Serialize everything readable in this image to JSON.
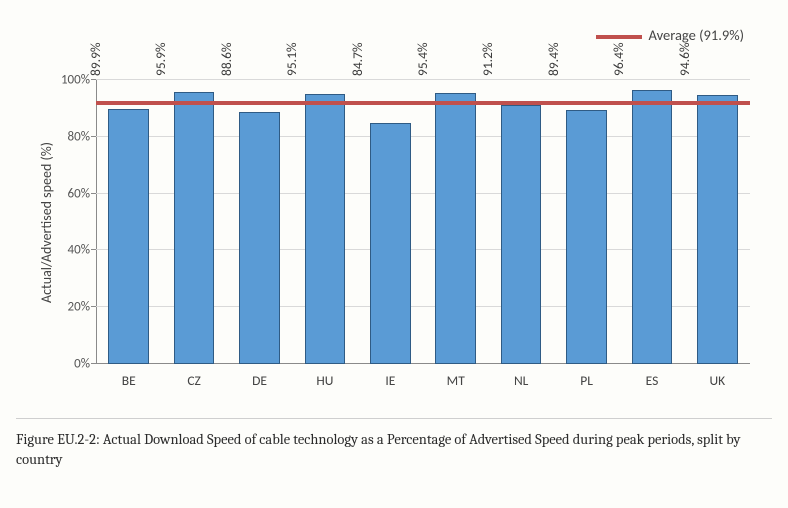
{
  "chart": {
    "type": "bar",
    "legend_label": "Average (91.9%)",
    "average_value": 91.9,
    "y_axis_title": "Actual/Advertised speed (%)",
    "ylim": [
      0,
      100
    ],
    "yticks": [
      0,
      20,
      40,
      60,
      80,
      100
    ],
    "ytick_labels": [
      "0%",
      "20%",
      "40%",
      "60%",
      "80%",
      "100%"
    ],
    "categories": [
      "BE",
      "CZ",
      "DE",
      "HU",
      "IE",
      "MT",
      "NL",
      "PL",
      "ES",
      "UK"
    ],
    "values": [
      89.9,
      95.9,
      88.6,
      95.1,
      84.7,
      95.4,
      91.2,
      89.4,
      96.4,
      94.6
    ],
    "value_labels": [
      "89.9%",
      "95.9%",
      "88.6%",
      "95.1%",
      "84.7%",
      "95.4%",
      "91.2%",
      "89.4%",
      "96.4%",
      "94.6%"
    ],
    "bar_color": "#5a9bd5",
    "bar_border_color": "#2f5b84",
    "avg_line_color": "#c0504d",
    "grid_color": "#d9d9d9",
    "axis_color": "#8a8a8a",
    "background_color": "#fdfdfa",
    "bar_width": 0.62,
    "label_fontsize": 14,
    "tick_fontsize": 13,
    "value_label_fontsize": 13.5
  },
  "caption": "Figure EU.2-2: Actual Download Speed of cable technology as a Percentage of Advertised Speed during peak periods, split by country"
}
